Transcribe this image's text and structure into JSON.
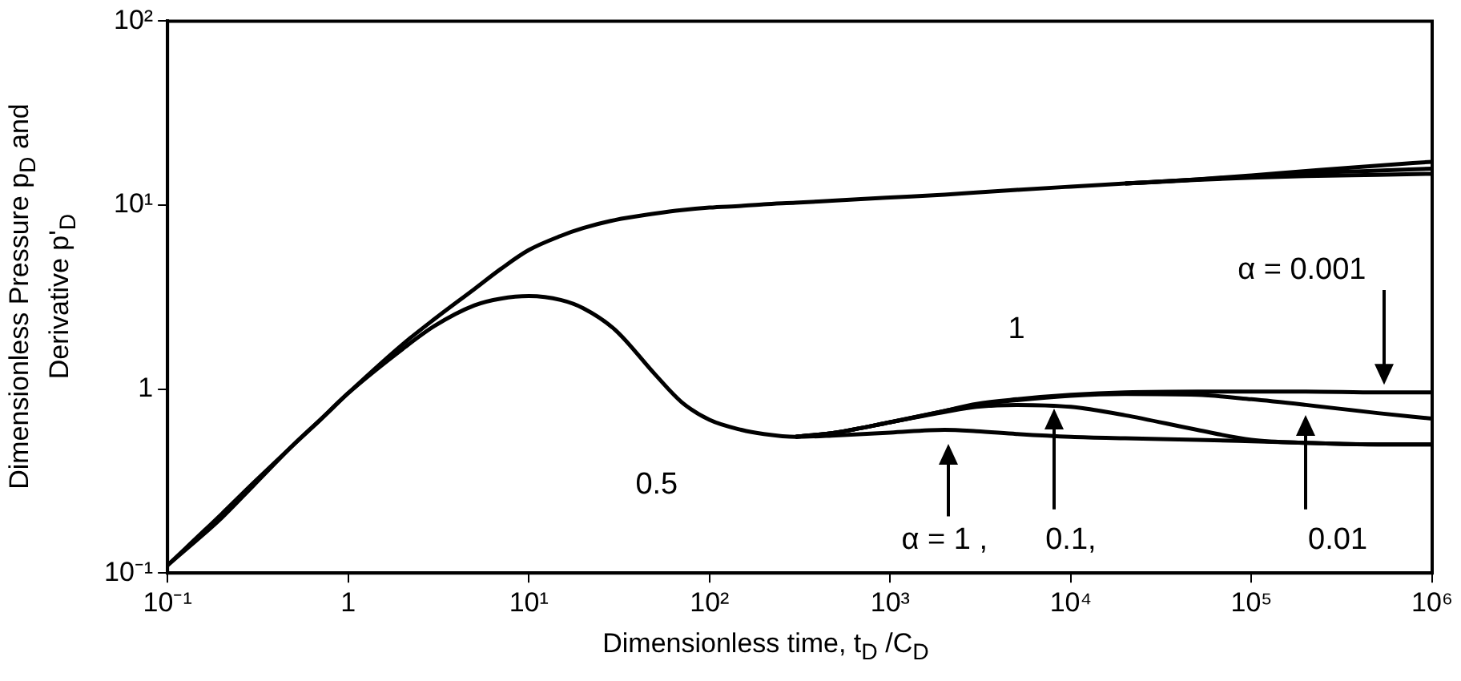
{
  "chart_data": {
    "type": "line",
    "xlabel": "Dimensionless time, t$_{D}$ /C$_{D}$",
    "ylabel": "Dimensionless Pressure p$_{D}$ and Derivative p'$_{D}$",
    "log": "xy",
    "grid": false,
    "legend": false,
    "marker": "none",
    "line_style": "solid",
    "xlim": [
      0.1,
      1000000
    ],
    "ylim": [
      0.1,
      100
    ],
    "xticks": [
      {
        "value": 0.1,
        "label": "10⁻¹"
      },
      1,
      {
        "value": 10,
        "label": "10¹"
      },
      {
        "value": 100,
        "label": "10²"
      },
      {
        "value": 1000,
        "label": "10³"
      },
      {
        "value": 10000,
        "label": "10⁴"
      },
      {
        "value": 100000,
        "label": "10⁵"
      },
      {
        "value": 1000000,
        "label": "10⁶"
      }
    ],
    "yticks": [
      {
        "value": 0.1,
        "label": "10⁻¹"
      },
      1,
      {
        "value": 10,
        "label": "10¹"
      },
      {
        "value": 100,
        "label": "10²"
      }
    ],
    "x": [
      0.1,
      0.2,
      0.3,
      0.5,
      0.7,
      1,
      2,
      3,
      5,
      7,
      10,
      15,
      20,
      30,
      50,
      70,
      100,
      150,
      200,
      300,
      500,
      1000,
      2000,
      3000,
      5000,
      10000,
      20000,
      50000,
      100000,
      200000,
      500000,
      1000000
    ],
    "series": [
      {
        "color": "#000000",
        "values": [
          0.11,
          0.21,
          0.31,
          0.5,
          0.68,
          0.95,
          1.75,
          2.4,
          3.5,
          4.5,
          5.7,
          6.8,
          7.5,
          8.3,
          9.0,
          9.4,
          9.7,
          9.9,
          10.1,
          10.3,
          10.6,
          11,
          11.4,
          11.7,
          12.1,
          12.6,
          13.1,
          13.8,
          14.5,
          15.3,
          16.4,
          17.2
        ]
      },
      {
        "color": "#000000",
        "x": [
          20000,
          50000,
          100000,
          200000,
          500000,
          1000000
        ],
        "values": [
          13.1,
          13.8,
          14.3,
          14.9,
          15.4,
          15.8
        ]
      },
      {
        "color": "#000000",
        "x": [
          20000,
          50000,
          100000,
          200000,
          500000,
          1000000
        ],
        "values": [
          13.1,
          13.7,
          14.1,
          14.4,
          14.6,
          14.8
        ]
      },
      {
        "color": "#000000",
        "values": [
          0.11,
          0.2,
          0.3,
          0.5,
          0.68,
          0.95,
          1.65,
          2.2,
          2.85,
          3.1,
          3.2,
          3.05,
          2.75,
          2.1,
          1.2,
          0.85,
          0.68,
          0.6,
          0.57,
          0.55,
          0.56,
          0.58,
          0.6,
          0.59,
          0.57,
          0.55,
          0.54,
          0.53,
          0.52,
          0.51,
          0.5,
          0.5
        ]
      },
      {
        "color": "#000000",
        "x": [
          300,
          500,
          1000,
          2000,
          3000,
          5000,
          10000,
          20000,
          50000,
          100000,
          200000,
          500000,
          1000000
        ],
        "values": [
          0.55,
          0.58,
          0.66,
          0.75,
          0.8,
          0.82,
          0.8,
          0.72,
          0.6,
          0.53,
          0.51,
          0.5,
          0.5
        ]
      },
      {
        "color": "#000000",
        "x": [
          300,
          500,
          1000,
          2000,
          3000,
          5000,
          10000,
          20000,
          50000,
          100000,
          200000,
          500000,
          1000000
        ],
        "values": [
          0.55,
          0.58,
          0.66,
          0.76,
          0.82,
          0.87,
          0.92,
          0.94,
          0.93,
          0.88,
          0.82,
          0.74,
          0.69
        ]
      },
      {
        "color": "#000000",
        "x": [
          300,
          500,
          1000,
          2000,
          3000,
          5000,
          10000,
          20000,
          50000,
          100000,
          200000,
          500000,
          1000000
        ],
        "values": [
          0.55,
          0.58,
          0.66,
          0.76,
          0.83,
          0.88,
          0.93,
          0.96,
          0.97,
          0.97,
          0.97,
          0.96,
          0.96
        ]
      }
    ],
    "annotations": [
      "α = 0.001",
      "1",
      "0.5",
      "α = 1 ,",
      "0.1,",
      "0.01"
    ]
  }
}
